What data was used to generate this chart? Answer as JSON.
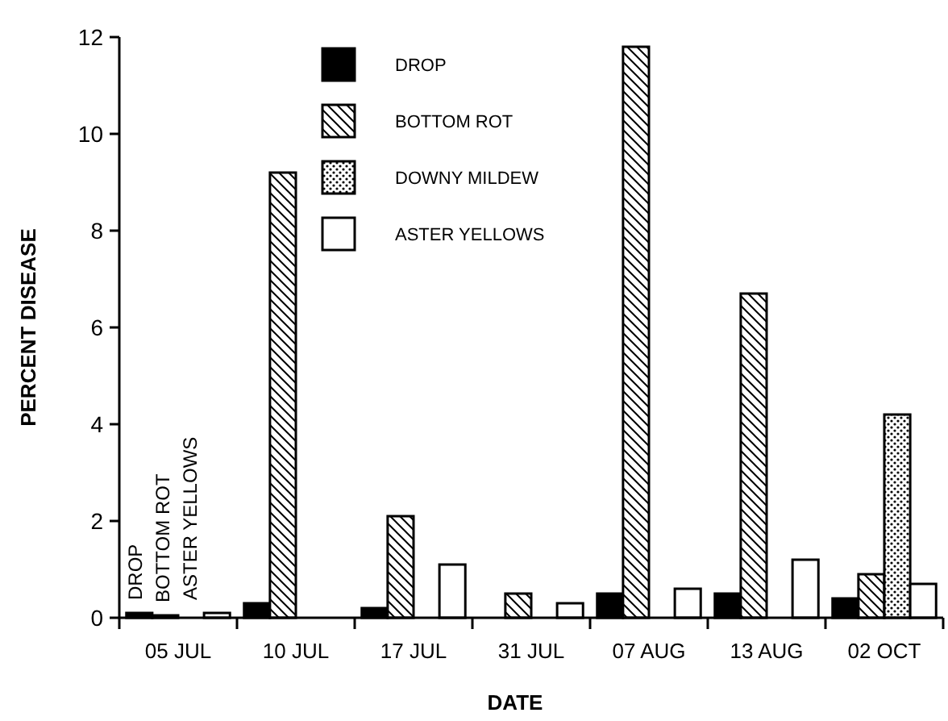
{
  "chart_data": {
    "type": "bar",
    "xlabel": "DATE",
    "ylabel": "PERCENT DISEASE",
    "categories": [
      "05 JUL",
      "10 JUL",
      "17 JUL",
      "31 JUL",
      "07 AUG",
      "13 AUG",
      "02 OCT"
    ],
    "series": [
      {
        "name": "DROP",
        "color": "#000000",
        "values": [
          0.1,
          0.3,
          0.2,
          null,
          0.5,
          0.5,
          0.4
        ]
      },
      {
        "name": "BOTTOM ROT",
        "color": "#000000",
        "values": [
          0.05,
          9.2,
          2.1,
          0.5,
          11.8,
          6.7,
          0.9
        ]
      },
      {
        "name": "DOWNY MILDEW",
        "color": "#000000",
        "values": [
          null,
          null,
          null,
          null,
          null,
          null,
          4.2
        ]
      },
      {
        "name": "ASTER YELLOWS",
        "color": "#ffffff",
        "values": [
          0.1,
          null,
          1.1,
          0.3,
          0.6,
          1.2,
          0.7
        ]
      }
    ],
    "annotations": [
      {
        "text": "DROP",
        "x": "05 JUL",
        "y": 0.1
      },
      {
        "text": "BOTTOM ROT",
        "x": "05 JUL",
        "y": 0.05
      },
      {
        "text": "ASTER YELLOWS",
        "x": "05 JUL",
        "y": 0.1
      }
    ],
    "ylim": [
      0,
      12
    ],
    "yticks": [
      0,
      2,
      4,
      6,
      8,
      10,
      12
    ],
    "legend": "top",
    "grid": false
  }
}
